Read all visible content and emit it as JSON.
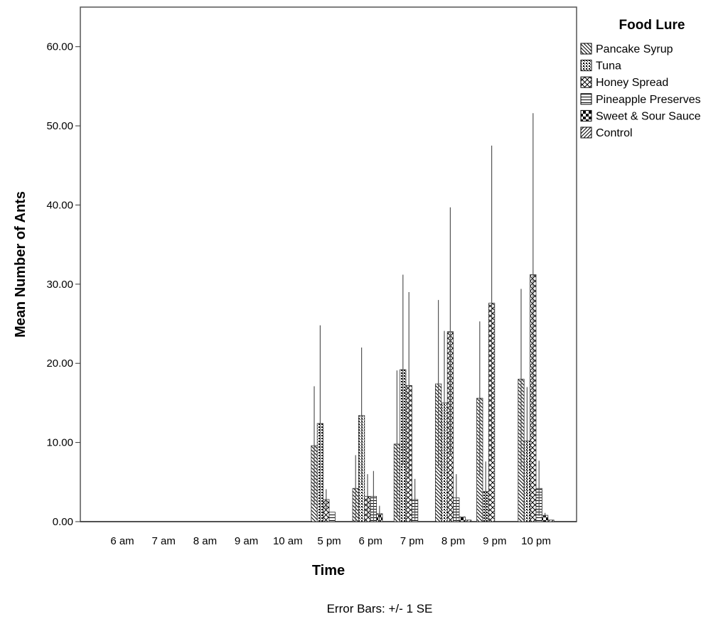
{
  "chart_data": {
    "type": "bar",
    "xlabel": "Time",
    "ylabel": "Mean Number of Ants",
    "footnote": "Error Bars: +/- 1 SE",
    "legend_title": "Food Lure",
    "legend_position": "top-right",
    "grid": false,
    "ylim": [
      0,
      65
    ],
    "yticks": [
      0,
      10,
      20,
      30,
      40,
      50,
      60
    ],
    "ytick_labels": [
      "0.00",
      "10.00",
      "20.00",
      "30.00",
      "40.00",
      "50.00",
      "60.00"
    ],
    "categories": [
      "6 am",
      "7 am",
      "8 am",
      "9 am",
      "10 am",
      "5 pm",
      "6 pm",
      "7 pm",
      "8 pm",
      "9 pm",
      "10 pm"
    ],
    "series": [
      {
        "name": "Pancake Syrup",
        "pattern": "hatch-diag-back",
        "values": [
          0,
          0,
          0,
          0,
          0,
          9.6,
          4.2,
          9.8,
          17.4,
          15.6,
          18.0
        ],
        "error": [
          0,
          0,
          0,
          0,
          0,
          7.5,
          4.2,
          9.3,
          10.6,
          9.7,
          11.4
        ]
      },
      {
        "name": "Tuna",
        "pattern": "dots",
        "values": [
          0,
          0,
          0,
          0,
          0,
          12.4,
          13.4,
          19.2,
          15.0,
          3.8,
          10.2
        ],
        "error": [
          0,
          0,
          0,
          0,
          0,
          12.4,
          8.6,
          12.0,
          9.1,
          3.8,
          6.8
        ]
      },
      {
        "name": "Honey Spread",
        "pattern": "crosshatch",
        "values": [
          0,
          0,
          0,
          0,
          0,
          2.8,
          3.2,
          17.2,
          24.0,
          27.6,
          31.2
        ],
        "error": [
          0,
          0,
          0,
          0,
          0,
          1.3,
          2.8,
          11.8,
          15.7,
          19.9,
          20.4
        ]
      },
      {
        "name": "Pineapple Preserves",
        "pattern": "horizontal",
        "values": [
          0,
          0,
          0,
          0,
          0,
          1.2,
          3.2,
          2.8,
          3.0,
          0,
          4.2
        ],
        "error": [
          0,
          0,
          0,
          0,
          0,
          0,
          3.2,
          2.6,
          3.0,
          0,
          3.5
        ]
      },
      {
        "name": "Sweet & Sour Sauce",
        "pattern": "checker",
        "values": [
          0,
          0,
          0,
          0,
          0,
          0,
          1.0,
          0,
          0.6,
          0,
          0.8
        ],
        "error": [
          0,
          0,
          0,
          0,
          0,
          0,
          1.0,
          0,
          0,
          0,
          0.3
        ]
      },
      {
        "name": "Control",
        "pattern": "hatch-diag-fwd",
        "values": [
          0,
          0,
          0,
          0,
          0,
          0,
          0,
          0,
          0.2,
          0,
          0.2
        ],
        "error": [
          0,
          0,
          0,
          0,
          0,
          0,
          0,
          0,
          0,
          0,
          0
        ]
      }
    ]
  }
}
